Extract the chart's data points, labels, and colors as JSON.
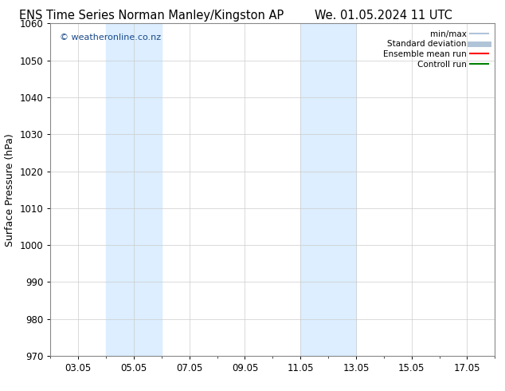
{
  "title_left": "ENS Time Series Norman Manley/Kingston AP",
  "title_right": "We. 01.05.2024 11 UTC",
  "ylabel": "Surface Pressure (hPa)",
  "ylim": [
    970,
    1060
  ],
  "yticks": [
    970,
    980,
    990,
    1000,
    1010,
    1020,
    1030,
    1040,
    1050,
    1060
  ],
  "x_tick_labels": [
    "03.05",
    "05.05",
    "07.05",
    "09.05",
    "11.05",
    "13.05",
    "15.05",
    "17.05"
  ],
  "x_tick_positions": [
    2,
    4,
    6,
    8,
    10,
    12,
    14,
    16
  ],
  "xlim": [
    1,
    17
  ],
  "watermark": "© weatheronline.co.nz",
  "shaded_bands": [
    {
      "x_start": 3.0,
      "x_end": 5.0
    },
    {
      "x_start": 10.0,
      "x_end": 12.0
    }
  ],
  "legend_items": [
    {
      "label": "min/max",
      "color": "#b0c4d8",
      "lw": 1.5
    },
    {
      "label": "Standard deviation",
      "color": "#b0c4d8",
      "lw": 5
    },
    {
      "label": "Ensemble mean run",
      "color": "red",
      "lw": 1.5
    },
    {
      "label": "Controll run",
      "color": "green",
      "lw": 1.5
    }
  ],
  "background_color": "#ffffff",
  "plot_bg_color": "#ffffff",
  "shaded_color": "#dceeff",
  "grid_color": "#cccccc",
  "title_fontsize": 10.5,
  "tick_fontsize": 8.5,
  "ylabel_fontsize": 9,
  "watermark_color": "#1a4a8a"
}
